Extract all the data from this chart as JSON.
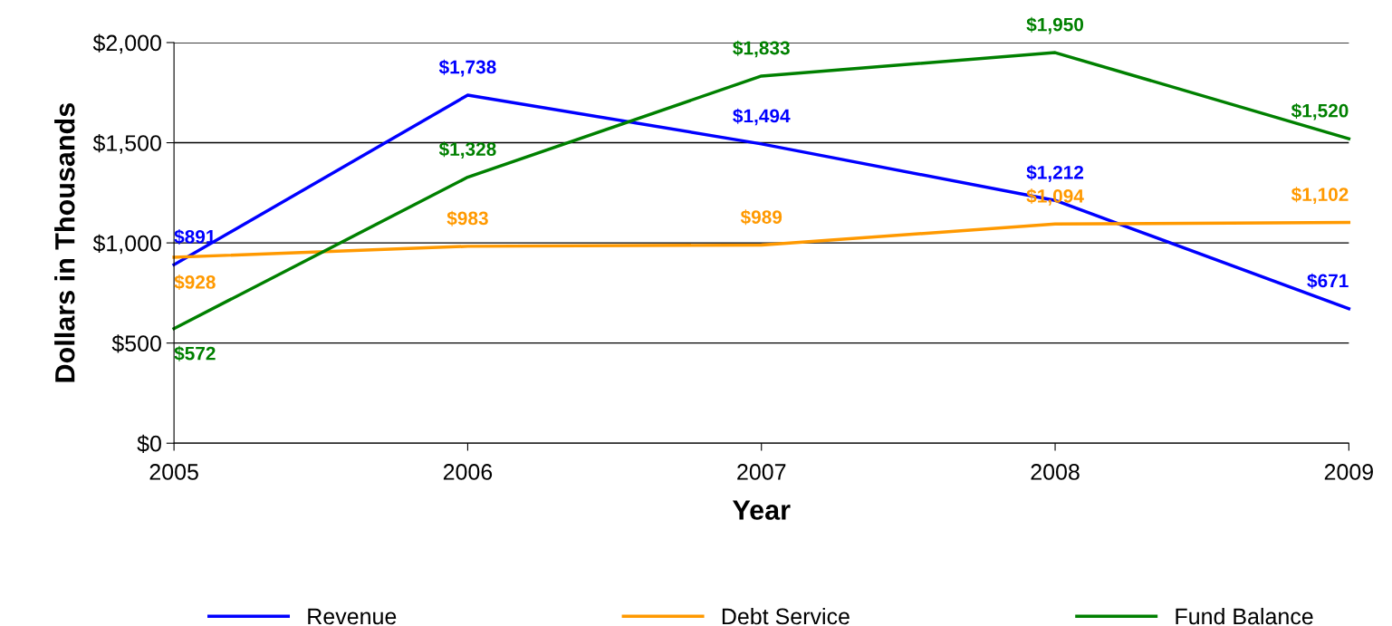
{
  "chart_data": {
    "type": "line",
    "xlabel": "Year",
    "ylabel": "Dollars in Thousands",
    "x": [
      2005,
      2006,
      2007,
      2008,
      2009
    ],
    "xlim": [
      2005,
      2009
    ],
    "xticks": [
      2005,
      2006,
      2007,
      2008,
      2009
    ],
    "ylim": [
      0,
      2000
    ],
    "yticks": [
      {
        "value": 0,
        "label": "$0"
      },
      {
        "value": 500,
        "label": "$500"
      },
      {
        "value": 1000,
        "label": "$1,000"
      },
      {
        "value": 1500,
        "label": "$1,500"
      },
      {
        "value": 2000,
        "label": "$2,000"
      }
    ],
    "grid": "y",
    "legend": "bottom",
    "marker": "none",
    "line_style": "solid",
    "series": [
      {
        "name": "Revenue",
        "color": "#0000ff",
        "values": [
          891,
          1738,
          1494,
          1212,
          671
        ],
        "value_labels": [
          "$891",
          "$1,738",
          "$1,494",
          "$1,212",
          "$671"
        ]
      },
      {
        "name": "Debt Service",
        "color": "#ff9900",
        "values": [
          928,
          983,
          989,
          1094,
          1102
        ],
        "value_labels": [
          "$928",
          "$983",
          "$989",
          "$1,094",
          "$1,102"
        ]
      },
      {
        "name": "Fund Balance",
        "color": "#008000",
        "values": [
          572,
          1328,
          1833,
          1950,
          1520
        ],
        "value_labels": [
          "$572",
          "$1,328",
          "$1,833",
          "$1,950",
          "$1,520"
        ]
      }
    ]
  }
}
